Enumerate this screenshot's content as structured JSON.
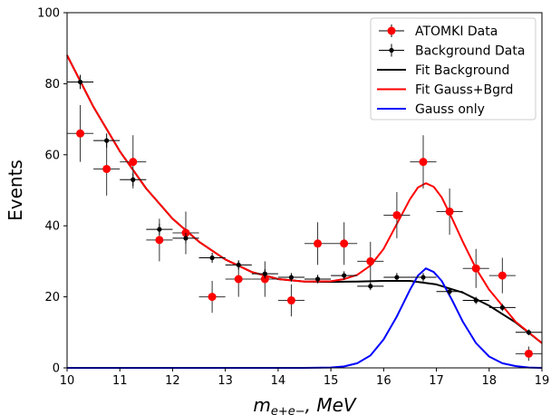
{
  "chart_data": {
    "type": "scatter",
    "title": "",
    "xlabel_parts": {
      "base": "m",
      "sub": "e+e−",
      "tail": ", MeV"
    },
    "ylabel": "Events",
    "xlim": [
      10,
      19
    ],
    "ylim": [
      0,
      100
    ],
    "xticks": [
      10,
      11,
      12,
      13,
      14,
      15,
      16,
      17,
      18,
      19
    ],
    "yticks": [
      0,
      20,
      40,
      60,
      80,
      100
    ],
    "grid": false,
    "legend_position": "top-right",
    "series": [
      {
        "name": "ATOMKI Data",
        "kind": "errorbar",
        "color": "#ff0000",
        "x_halfwidth": 0.25,
        "x": [
          10.25,
          10.75,
          11.25,
          11.75,
          12.25,
          12.75,
          13.25,
          13.75,
          14.25,
          14.75,
          15.25,
          15.75,
          16.25,
          16.75,
          17.25,
          17.75,
          18.25,
          18.75
        ],
        "y": [
          66,
          56,
          58,
          36,
          38,
          20,
          25,
          25,
          19,
          35,
          35,
          30,
          43,
          58,
          44,
          28,
          26,
          4
        ],
        "yerr": [
          8,
          7.5,
          7.5,
          6,
          6,
          4.5,
          5,
          5,
          4.5,
          6,
          6,
          5.5,
          6.5,
          7.5,
          6.5,
          5.5,
          5,
          2
        ]
      },
      {
        "name": "Background Data",
        "kind": "errorbar",
        "color": "#000000",
        "x_halfwidth": 0.25,
        "x": [
          10.25,
          10.75,
          11.25,
          11.75,
          12.25,
          12.75,
          13.25,
          13.75,
          14.25,
          14.75,
          15.25,
          15.75,
          16.25,
          16.75,
          17.25,
          17.75,
          18.25,
          18.75
        ],
        "y": [
          80.5,
          64,
          53,
          39,
          36.5,
          31,
          29,
          26.5,
          25.5,
          25,
          26,
          23,
          25.5,
          25.5,
          21.5,
          19,
          17,
          10
        ],
        "yerr": [
          2,
          2,
          1.8,
          1.6,
          1.5,
          1.4,
          1.3,
          1.3,
          1.2,
          1.2,
          1.2,
          1.1,
          1.2,
          1.2,
          1.1,
          1,
          1,
          0.8
        ]
      },
      {
        "name": "Fit Background",
        "kind": "line",
        "color": "#000000",
        "x": [
          10,
          10.5,
          11,
          11.5,
          12,
          12.5,
          13,
          13.5,
          14,
          14.5,
          15,
          15.5,
          16,
          16.5,
          17,
          17.5,
          18,
          18.5,
          19
        ],
        "y": [
          88,
          73.5,
          61,
          50.5,
          42,
          35.5,
          30.5,
          27,
          25,
          24.3,
          24.2,
          24.3,
          24.5,
          24.5,
          23.5,
          21.2,
          17.5,
          12.8,
          7
        ]
      },
      {
        "name": "Fit Gauss+Bgrd",
        "kind": "line",
        "color": "#ff0000",
        "x": [
          10,
          10.5,
          11,
          11.5,
          12,
          12.5,
          13,
          13.5,
          14,
          14.5,
          15,
          15.25,
          15.5,
          15.75,
          16,
          16.25,
          16.5,
          16.65,
          16.8,
          16.95,
          17.1,
          17.3,
          17.5,
          17.75,
          18,
          18.5,
          19
        ],
        "y": [
          88,
          73.5,
          61,
          50.5,
          42,
          35.5,
          30.5,
          27,
          25,
          24.3,
          24.4,
          25,
          26.2,
          28.8,
          33.5,
          40.5,
          47.5,
          50.8,
          52,
          51,
          48,
          42,
          35.5,
          28,
          22,
          13,
          7
        ]
      },
      {
        "name": "Gauss only",
        "kind": "line",
        "color": "#0000ff",
        "x": [
          10,
          14.5,
          15,
          15.25,
          15.5,
          15.75,
          16,
          16.25,
          16.5,
          16.65,
          16.8,
          16.95,
          17.1,
          17.3,
          17.5,
          17.75,
          18,
          18.25,
          18.5,
          18.75,
          19
        ],
        "y": [
          0,
          0,
          0.1,
          0.4,
          1.3,
          3.5,
          8,
          14.5,
          22,
          26,
          28,
          27,
          24.5,
          19,
          13,
          7,
          3.2,
          1.3,
          0.5,
          0.1,
          0
        ]
      }
    ]
  }
}
